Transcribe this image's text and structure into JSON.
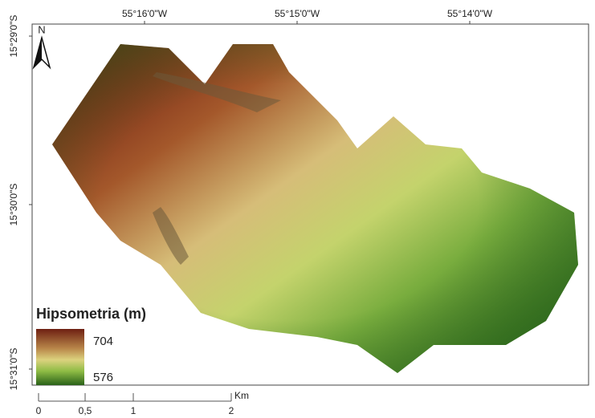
{
  "map": {
    "x_labels": [
      "55°16'0\"W",
      "55°15'0\"W",
      "55°14'0\"W"
    ],
    "y_labels": [
      "15°29'0\"S",
      "15°30'0\"S",
      "15°31'0\"S"
    ],
    "north": "N",
    "legend": {
      "title": "Hipsometria (m)",
      "max": "704",
      "min": "576"
    },
    "scale": {
      "ticks": [
        "0",
        "0,5",
        "1",
        "2"
      ],
      "unit": "Km"
    }
  }
}
